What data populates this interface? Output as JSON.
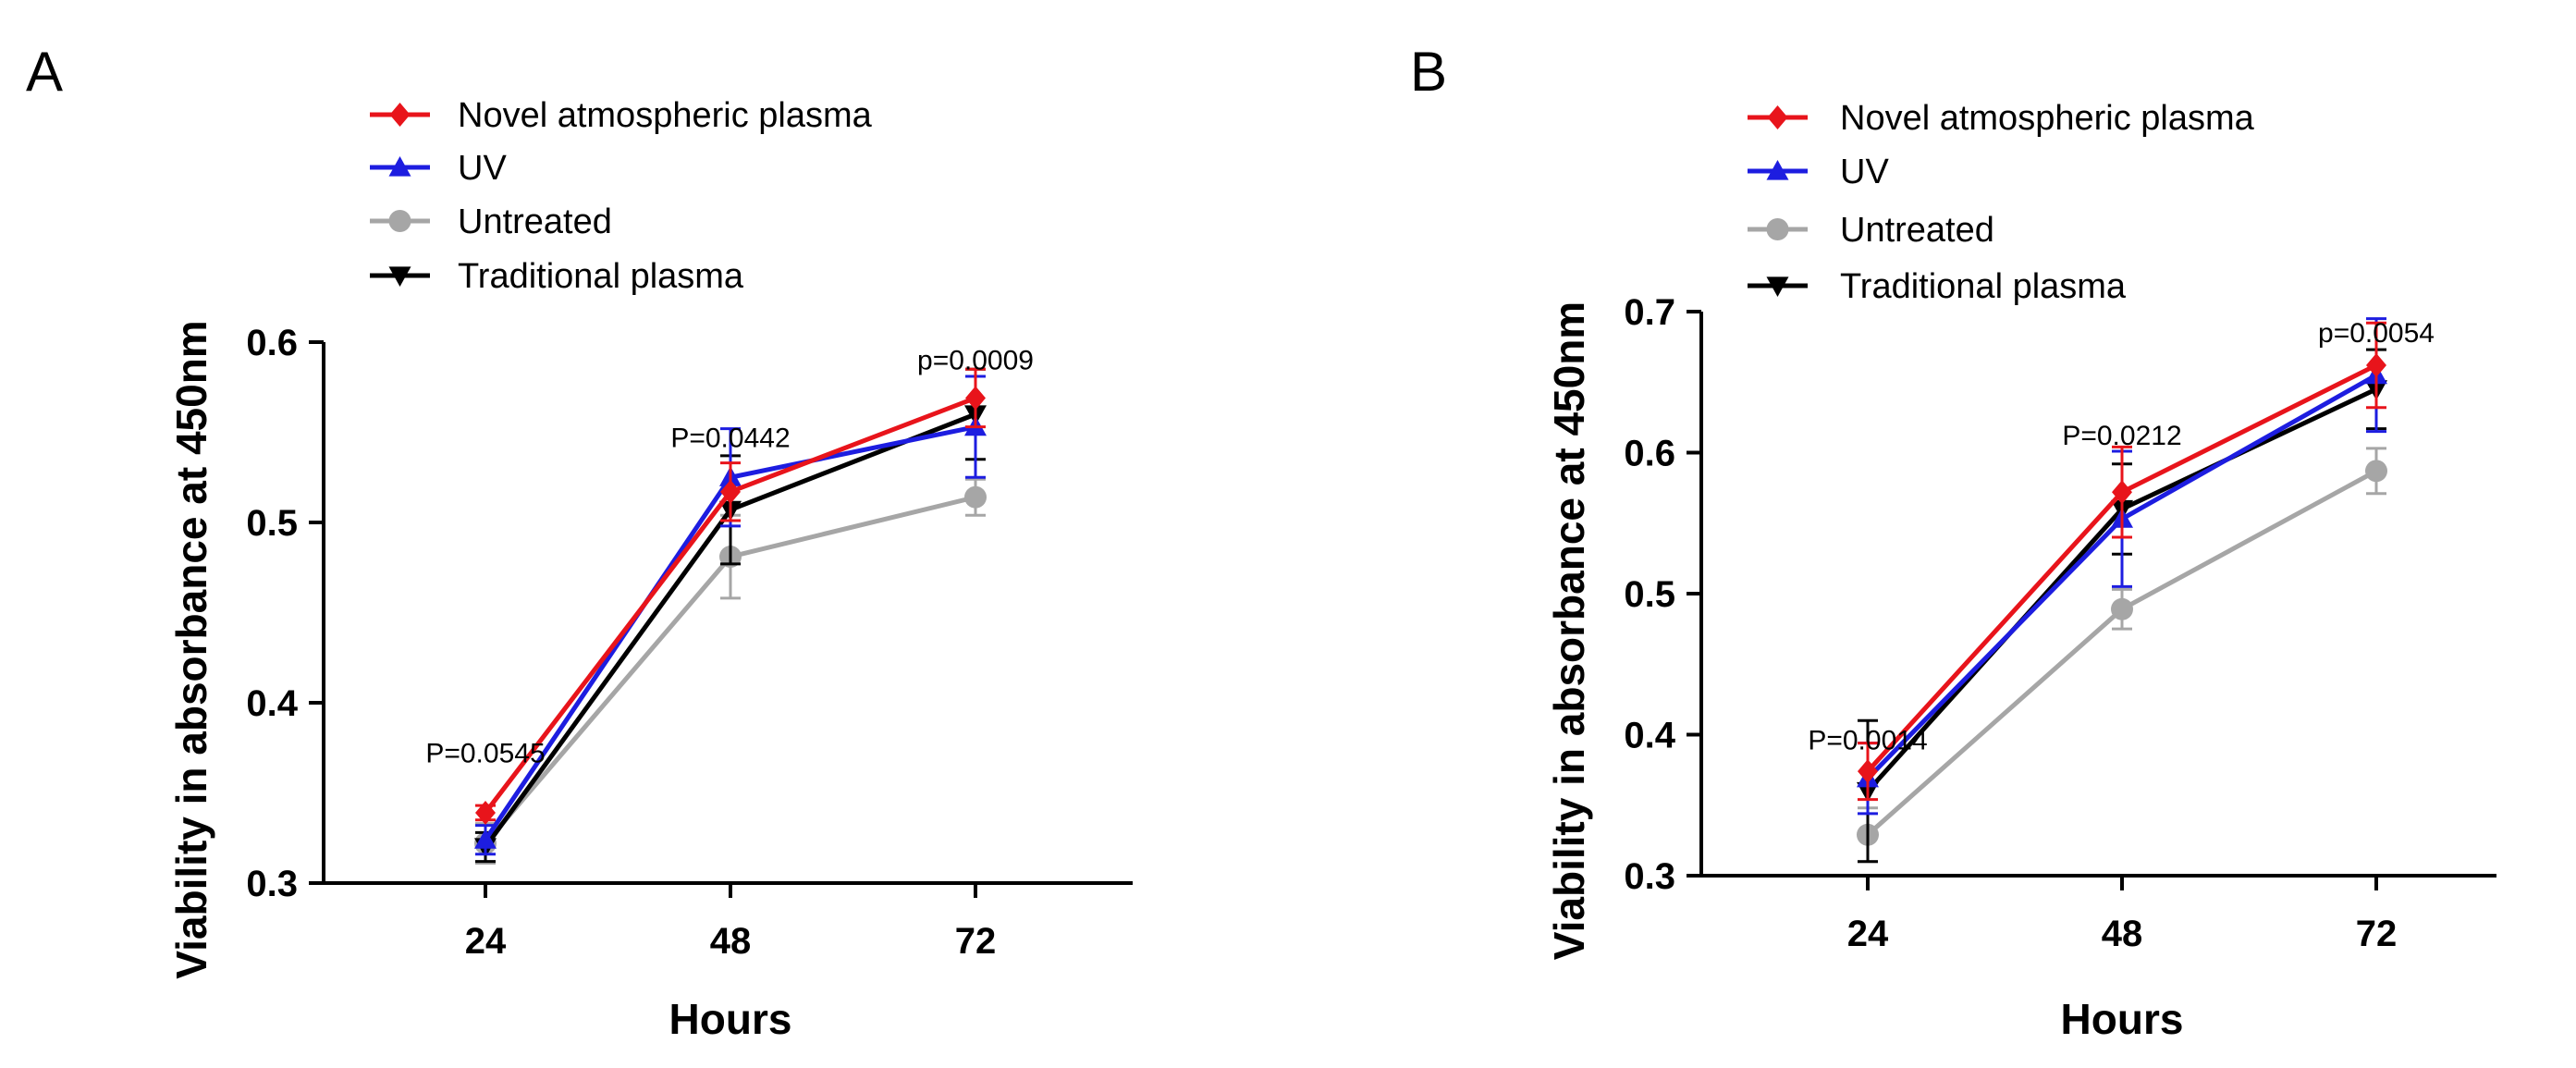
{
  "chart_data": [
    {
      "panel": "A",
      "type": "line",
      "x": [
        24,
        48,
        72
      ],
      "xlabel": "Hours",
      "ylabel": "Viability in absorbance at 450nm",
      "ylim": [
        0.3,
        0.6
      ],
      "yticks": [
        0.3,
        0.4,
        0.5,
        0.6
      ],
      "yticklabels": [
        "0.3",
        "0.4",
        "0.5",
        "0.6"
      ],
      "xticklabels": [
        "24",
        "48",
        "72"
      ],
      "legend_position": "top",
      "series": [
        {
          "name": "Novel atmospheric plasma",
          "color": "#e8141b",
          "marker": "diamond",
          "values": [
            0.339,
            0.517,
            0.569
          ],
          "errors": [
            0.004,
            0.016,
            0.016
          ]
        },
        {
          "name": "UV",
          "color": "#1d1de0",
          "marker": "triangle-up",
          "values": [
            0.324,
            0.525,
            0.553
          ],
          "errors": [
            0.008,
            0.027,
            0.028
          ]
        },
        {
          "name": "Untreated",
          "color": "#a6a6a6",
          "marker": "circle",
          "values": [
            0.322,
            0.481,
            0.514
          ],
          "errors": [
            0.011,
            0.023,
            0.01
          ]
        },
        {
          "name": "Traditional plasma",
          "color": "#000000",
          "marker": "triangle-down",
          "values": [
            0.32,
            0.507,
            0.56
          ],
          "errors": [
            0.008,
            0.03,
            0.025
          ]
        }
      ],
      "annotations": [
        {
          "text": "P=0.0545",
          "x": 24,
          "y": 0.372
        },
        {
          "text": "P=0.0442",
          "x": 48,
          "y": 0.547
        },
        {
          "text": "p=0.0009",
          "x": 72,
          "y": 0.59
        }
      ]
    },
    {
      "panel": "B",
      "type": "line",
      "x": [
        24,
        48,
        72
      ],
      "xlabel": "Hours",
      "ylabel": "Viability in absorbance at 450nm",
      "ylim": [
        0.3,
        0.7
      ],
      "yticks": [
        0.3,
        0.4,
        0.5,
        0.6,
        0.7
      ],
      "yticklabels": [
        "0.3",
        "0.4",
        "0.5",
        "0.6",
        "0.7"
      ],
      "xticklabels": [
        "24",
        "48",
        "72"
      ],
      "legend_position": "top",
      "series": [
        {
          "name": "Novel atmospheric plasma",
          "color": "#e8141b",
          "marker": "diamond",
          "values": [
            0.374,
            0.572,
            0.662
          ],
          "errors": [
            0.02,
            0.032,
            0.03
          ]
        },
        {
          "name": "UV",
          "color": "#1d1de0",
          "marker": "triangle-up",
          "values": [
            0.369,
            0.553,
            0.655
          ],
          "errors": [
            0.025,
            0.048,
            0.04
          ]
        },
        {
          "name": "Untreated",
          "color": "#a6a6a6",
          "marker": "circle",
          "values": [
            0.329,
            0.489,
            0.587
          ],
          "errors": [
            0.019,
            0.014,
            0.016
          ]
        },
        {
          "name": "Traditional plasma",
          "color": "#000000",
          "marker": "triangle-down",
          "values": [
            0.36,
            0.56,
            0.645
          ],
          "errors": [
            0.05,
            0.032,
            0.028
          ]
        }
      ],
      "annotations": [
        {
          "text": "P=0.0014",
          "x": 24,
          "y": 0.396
        },
        {
          "text": "P=0.0212",
          "x": 48,
          "y": 0.612
        },
        {
          "text": "p=0.0054",
          "x": 72,
          "y": 0.685
        }
      ]
    }
  ]
}
